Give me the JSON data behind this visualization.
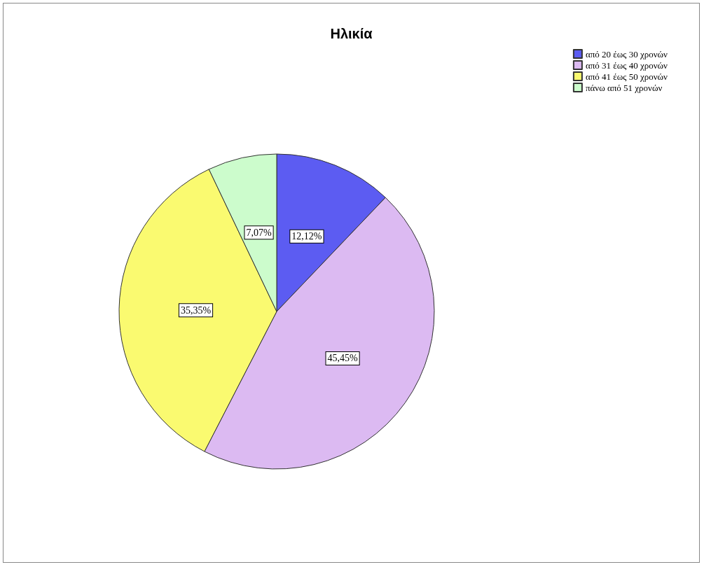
{
  "chart_data": {
    "type": "pie",
    "title": "Ηλικία",
    "categories": [
      "από 20 έως 30 χρονών",
      "από 31 έως 40 χρονών",
      "από 41 έως 50 χρονών",
      "πάνω από 51 χρονών"
    ],
    "values": [
      12.12,
      45.45,
      35.35,
      7.07
    ],
    "colors": [
      "#5c5cf2",
      "#dcbaf2",
      "#fafa70",
      "#ccfccc"
    ],
    "value_labels": [
      "12,12%",
      "45,45%",
      "35,35%",
      "7,07%"
    ],
    "legend": "top right"
  }
}
